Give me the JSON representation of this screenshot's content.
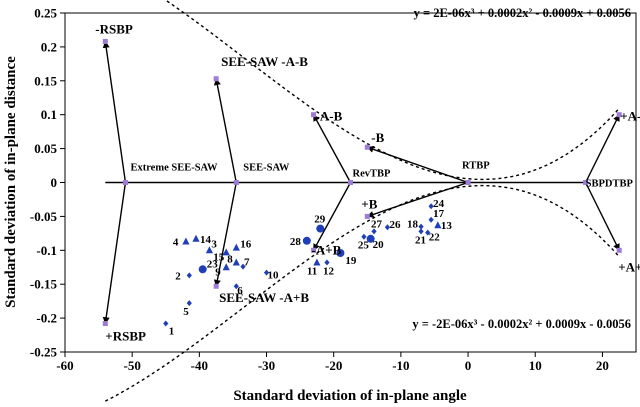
{
  "chart_data": {
    "type": "scatter",
    "xlabel": "Standard deviation of in-plane angle",
    "ylabel": "Standard deviation of in-plane distance",
    "xlim": [
      -60,
      25
    ],
    "ylim": [
      -0.25,
      0.25
    ],
    "xticks": [
      -60,
      -50,
      -40,
      -30,
      -20,
      -10,
      0,
      10,
      20
    ],
    "yticks": [
      0.25,
      0.2,
      0.15,
      0.1,
      0.05,
      0,
      -0.05,
      -0.1,
      -0.15,
      -0.2,
      -0.25
    ],
    "ytick_labels": [
      "0.25",
      "0.2",
      "0.15",
      "0.1",
      "0.05",
      "0",
      "-0.05",
      "-0.1",
      "-0.15",
      "-0.2",
      "-0.25"
    ],
    "equations": {
      "upper": "y = 2E-06x³ + 0.0002x² - 0.0009x + 0.0056",
      "lower": "y = -2E-06x³ - 0.0002x² + 0.0009x - 0.0056"
    },
    "reference_points": [
      {
        "id": "rsbp_pos",
        "label": "-RSBP",
        "x": -54,
        "y": 0.208
      },
      {
        "id": "rsbp_neg",
        "label": "+RSBP",
        "x": -54,
        "y": -0.208
      },
      {
        "id": "extreme",
        "label": "Extreme SEE-SAW",
        "x": -51,
        "y": 0
      },
      {
        "id": "seesaw_pos",
        "label": "SEE-SAW -A-B",
        "x": -37.5,
        "y": 0.153
      },
      {
        "id": "seesaw_neg",
        "label": "SEE-SAW -A+B",
        "x": -37.5,
        "y": -0.153
      },
      {
        "id": "seesaw",
        "label": "SEE-SAW",
        "x": -34.5,
        "y": 0
      },
      {
        "id": "amb",
        "label": "-A-B",
        "x": -23,
        "y": 0.1
      },
      {
        "id": "mb",
        "label": "-B",
        "x": -15,
        "y": 0.052
      },
      {
        "id": "revtbp",
        "label": "RevTBP",
        "x": -17.5,
        "y": 0
      },
      {
        "id": "pb",
        "label": "+B",
        "x": -15,
        "y": -0.05
      },
      {
        "id": "apb",
        "label": "-A+B",
        "x": -23,
        "y": -0.1
      },
      {
        "id": "rtbp",
        "label": "RTBP",
        "x": 0,
        "y": 0
      },
      {
        "id": "sbpdtbp",
        "label": "SBPDTBP",
        "x": 17.5,
        "y": 0
      },
      {
        "id": "pamb",
        "label": "+A-B",
        "x": 22.5,
        "y": 0.1
      },
      {
        "id": "papb",
        "label": "+A+B",
        "x": 22.5,
        "y": -0.1
      }
    ],
    "arrows": [
      [
        "extreme",
        "rsbp_pos"
      ],
      [
        "extreme",
        "rsbp_neg"
      ],
      [
        "seesaw",
        "seesaw_pos"
      ],
      [
        "seesaw",
        "seesaw_neg"
      ],
      [
        "revtbp",
        "amb"
      ],
      [
        "revtbp",
        "apb"
      ],
      [
        "rtbp",
        "mb"
      ],
      [
        "rtbp",
        "pb"
      ],
      [
        "sbpdtbp",
        "pamb"
      ],
      [
        "sbpdtbp",
        "papb"
      ]
    ],
    "axis_line": {
      "from": -54,
      "to": 17.5
    },
    "data_points": [
      {
        "label": "1",
        "x": -45,
        "y": -0.208,
        "marker": "diamond"
      },
      {
        "label": "2",
        "x": -41.5,
        "y": -0.137,
        "marker": "diamond"
      },
      {
        "label": "3",
        "x": -38.5,
        "y": -0.1,
        "marker": "triangle"
      },
      {
        "label": "4",
        "x": -42,
        "y": -0.087,
        "marker": "triangle"
      },
      {
        "label": "5",
        "x": -41.5,
        "y": -0.178,
        "marker": "diamond"
      },
      {
        "label": "6",
        "x": -34.5,
        "y": -0.153,
        "marker": "diamond"
      },
      {
        "label": "7",
        "x": -33.5,
        "y": -0.124,
        "marker": "diamond"
      },
      {
        "label": "8",
        "x": -34.5,
        "y": -0.118,
        "marker": "triangle"
      },
      {
        "label": "9",
        "x": -36,
        "y": -0.125,
        "marker": "triangle"
      },
      {
        "label": "10",
        "x": -30,
        "y": -0.133,
        "marker": "diamond"
      },
      {
        "label": "11",
        "x": -22.5,
        "y": -0.118,
        "marker": "triangle"
      },
      {
        "label": "12",
        "x": -21,
        "y": -0.118,
        "marker": "diamond"
      },
      {
        "label": "13",
        "x": -4.5,
        "y": -0.063,
        "marker": "triangle"
      },
      {
        "label": "14",
        "x": -40.5,
        "y": -0.083,
        "marker": "triangle"
      },
      {
        "label": "15",
        "x": -36,
        "y": -0.103,
        "marker": "triangle"
      },
      {
        "label": "16",
        "x": -34.5,
        "y": -0.096,
        "marker": "triangle"
      },
      {
        "label": "17",
        "x": -5.5,
        "y": -0.055,
        "marker": "diamond"
      },
      {
        "label": "18",
        "x": -7,
        "y": -0.065,
        "marker": "diamond"
      },
      {
        "label": "19",
        "x": -19,
        "y": -0.104,
        "marker": "circle"
      },
      {
        "label": "20",
        "x": -14.5,
        "y": -0.083,
        "marker": "circle"
      },
      {
        "label": "21",
        "x": -7,
        "y": -0.072,
        "marker": "diamond"
      },
      {
        "label": "22",
        "x": -6,
        "y": -0.074,
        "marker": "diamond"
      },
      {
        "label": "23",
        "x": -39.5,
        "y": -0.128,
        "marker": "circle"
      },
      {
        "label": "24",
        "x": -5.5,
        "y": -0.035,
        "marker": "diamond"
      },
      {
        "label": "25",
        "x": -15.5,
        "y": -0.08,
        "marker": "diamond"
      },
      {
        "label": "26",
        "x": -12,
        "y": -0.066,
        "marker": "diamond"
      },
      {
        "label": "27",
        "x": -14,
        "y": -0.072,
        "marker": "diamond"
      },
      {
        "label": "28",
        "x": -24,
        "y": -0.086,
        "marker": "circle"
      },
      {
        "label": "29",
        "x": -22,
        "y": -0.068,
        "marker": "circle"
      }
    ]
  }
}
